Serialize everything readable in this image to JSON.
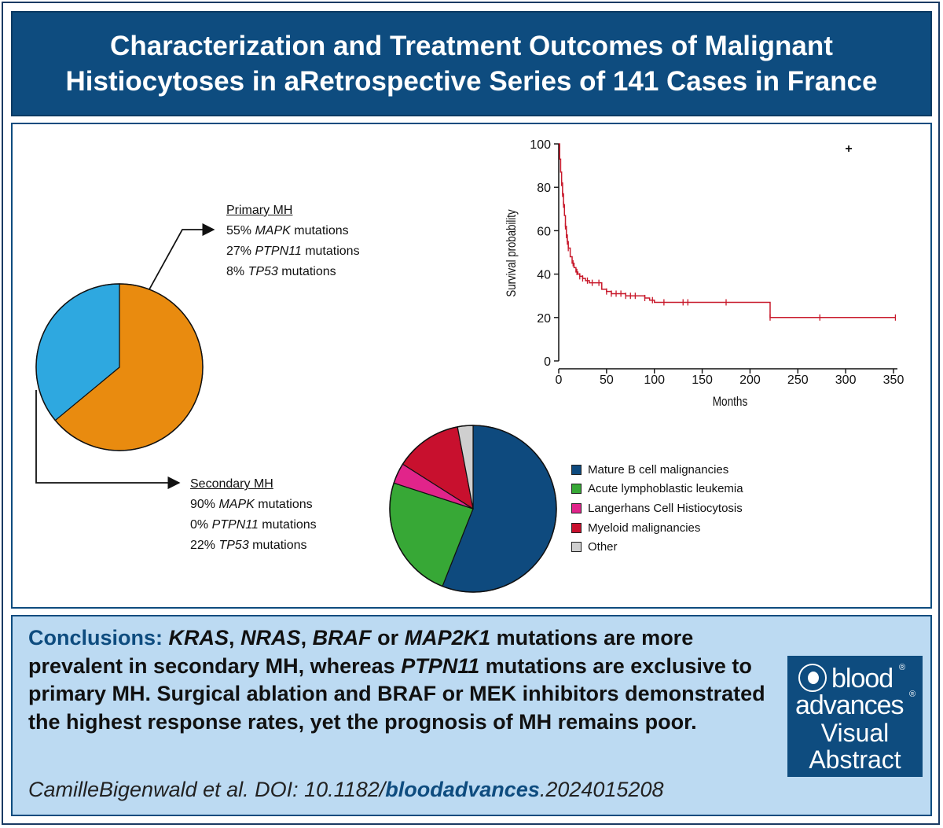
{
  "title": "Characterization and Treatment Outcomes of Malignant Histiocytoses in aRetrospective Series of 141 Cases in France",
  "primary": {
    "heading": "Primary MH",
    "lines": [
      {
        "pre": "55% ",
        "gene": "MAPK",
        "post": " mutations"
      },
      {
        "pre": "27% ",
        "gene": "PTPN11",
        "post": " mutations"
      },
      {
        "pre": "8% ",
        "gene": "TP53",
        "post": " mutations"
      }
    ]
  },
  "secondary": {
    "heading": "Secondary MH",
    "lines": [
      {
        "pre": "90% ",
        "gene": "MAPK",
        "post": " mutations"
      },
      {
        "pre": "0% ",
        "gene": "PTPN11",
        "post": " mutations"
      },
      {
        "pre": "22% ",
        "gene": "TP53",
        "post": " mutations"
      }
    ]
  },
  "chart_data": [
    {
      "type": "pie",
      "title": "",
      "labels": [
        "Secondary MH",
        "Primary MH"
      ],
      "values": [
        36,
        64
      ],
      "colors": [
        "#e98b0f",
        "#2ea8e0"
      ]
    },
    {
      "type": "line",
      "title": "",
      "xlabel": "Months",
      "ylabel": "Survival probability",
      "xlim": [
        0,
        350
      ],
      "ylim": [
        0,
        100
      ],
      "xticks": [
        0,
        50,
        100,
        150,
        200,
        250,
        300,
        350
      ],
      "yticks": [
        0,
        20,
        40,
        60,
        80,
        100
      ],
      "line_color": "#c8192b",
      "x": [
        0,
        1,
        2,
        3,
        4,
        5,
        6,
        7,
        8,
        9,
        10,
        12,
        14,
        16,
        18,
        20,
        22,
        25,
        28,
        32,
        36,
        40,
        45,
        50,
        55,
        60,
        70,
        80,
        90,
        95,
        100,
        120,
        175,
        220,
        221,
        273,
        352
      ],
      "y": [
        100,
        93,
        87,
        82,
        77,
        72,
        67,
        62,
        58,
        55,
        52,
        48,
        45,
        43,
        41,
        40,
        39,
        38,
        37,
        36,
        36,
        36,
        33,
        32,
        31,
        31,
        30,
        30,
        29,
        28,
        27,
        27,
        27,
        27,
        20,
        20,
        20
      ],
      "censor_x": [
        3,
        4,
        5,
        7,
        8,
        9,
        10,
        15,
        19,
        22,
        25,
        30,
        35,
        42,
        50,
        55,
        60,
        65,
        70,
        75,
        80,
        90,
        98,
        110,
        130,
        135,
        175,
        221,
        273,
        352
      ],
      "annotation": "+"
    },
    {
      "type": "pie",
      "title": "",
      "labels": [
        "Mature B cell malignancies",
        "Acute lymphoblastic leukemia",
        "Langerhans Cell Histiocytosis",
        "Myeloid malignancies",
        "Other"
      ],
      "values": [
        56,
        24,
        4,
        13,
        3
      ],
      "colors": [
        "#0e4a7e",
        "#37a836",
        "#e1248a",
        "#c8102e",
        "#cfcfcf"
      ]
    }
  ],
  "conclusion": {
    "lead": "Conclusions:",
    "segments": [
      {
        "text": " ",
        "italic": false
      },
      {
        "text": "KRAS",
        "italic": true
      },
      {
        "text": ", ",
        "italic": false
      },
      {
        "text": "NRAS",
        "italic": true
      },
      {
        "text": ", ",
        "italic": false
      },
      {
        "text": "BRAF",
        "italic": true
      },
      {
        "text": " or ",
        "italic": false
      },
      {
        "text": "MAP2K1",
        "italic": true
      },
      {
        "text": " mutations are more prevalent in secondary MH, whereas ",
        "italic": false
      },
      {
        "text": "PTPN11",
        "italic": true
      },
      {
        "text": " mutations are exclusive to primary MH. Surgical ablation and BRAF or MEK inhibitors demonstrated the highest response rates, yet the prognosis of MH remains poor.",
        "italic": false
      }
    ]
  },
  "citation": {
    "pre": "CamilleBigenwald et al. DOI: 10.1182/",
    "highlight": "bloodadvances",
    "post": ".2024015208"
  },
  "logo": {
    "line1": "blood",
    "line2": "advances",
    "line3": "Visual",
    "line4": "Abstract",
    "reg": "®"
  },
  "colors": {
    "navy": "#0e4c7f",
    "light_blue_panel": "#bcdaf2"
  }
}
